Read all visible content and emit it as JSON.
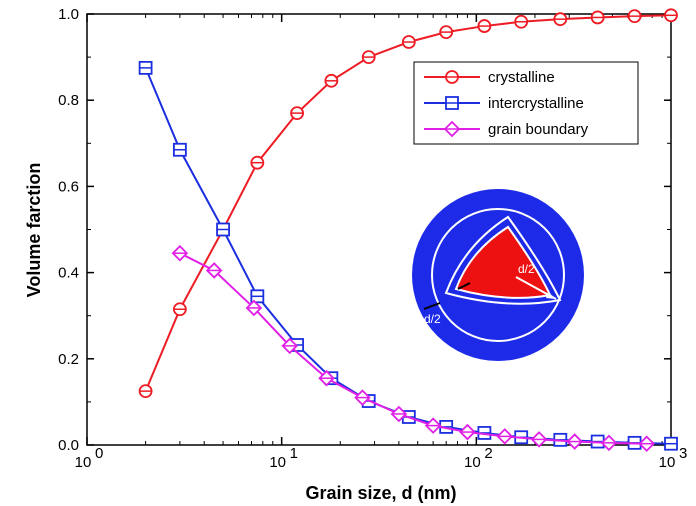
{
  "chart_data": {
    "type": "line",
    "xlabel": "Grain size, d (nm)",
    "ylabel": "Volume farction",
    "xscale": "log",
    "xlim": [
      1,
      1000
    ],
    "ylim": [
      0,
      1.0
    ],
    "x_ticks": [
      {
        "value": 1,
        "base": "10",
        "exp": "0"
      },
      {
        "value": 10,
        "base": "10",
        "exp": "1"
      },
      {
        "value": 100,
        "base": "10",
        "exp": "2"
      },
      {
        "value": 1000,
        "base": "10",
        "exp": "3"
      }
    ],
    "y_ticks": [
      "0.0",
      "0.2",
      "0.4",
      "0.6",
      "0.8",
      "1.0"
    ],
    "legend_position": "top-right",
    "grid": false,
    "series": [
      {
        "name": "crystalline",
        "color": "#ee1c24",
        "marker": "circle",
        "x": [
          2,
          3,
          5,
          7.5,
          12,
          18,
          28,
          45,
          70,
          110,
          170,
          270,
          420,
          650,
          1000
        ],
        "y": [
          0.125,
          0.315,
          0.5,
          0.655,
          0.77,
          0.845,
          0.9,
          0.935,
          0.958,
          0.972,
          0.982,
          0.988,
          0.992,
          0.995,
          0.997
        ]
      },
      {
        "name": "intercrystalline",
        "color": "#1b2fe0",
        "marker": "square",
        "x": [
          2,
          3,
          5,
          7.5,
          12,
          18,
          28,
          45,
          70,
          110,
          170,
          270,
          420,
          650,
          1000
        ],
        "y": [
          0.875,
          0.685,
          0.5,
          0.345,
          0.232,
          0.155,
          0.102,
          0.065,
          0.042,
          0.028,
          0.018,
          0.012,
          0.008,
          0.005,
          0.003
        ]
      },
      {
        "name": "grain boundary",
        "color": "#e020e6",
        "marker": "diamond",
        "x": [
          3,
          4.5,
          7.2,
          11,
          17,
          26,
          40,
          60,
          90,
          140,
          210,
          320,
          480,
          750
        ],
        "y": [
          0.445,
          0.405,
          0.318,
          0.23,
          0.155,
          0.11,
          0.072,
          0.045,
          0.03,
          0.02,
          0.013,
          0.008,
          0.005,
          0.003
        ]
      }
    ]
  },
  "inset": {
    "label_radius": "d/2",
    "label_shell": "d/2",
    "colors": {
      "outer": "#1d2be8",
      "inner": "#ee1111",
      "lines": "#ffffff"
    }
  }
}
